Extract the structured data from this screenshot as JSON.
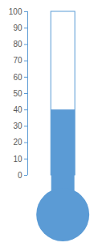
{
  "chart_data": {
    "type": "bar",
    "values": [
      40
    ],
    "color": "#5b9bd5",
    "ylim": [
      0,
      100
    ],
    "yticks": [
      0,
      10,
      20,
      30,
      40,
      50,
      60,
      70,
      80,
      90,
      100
    ]
  }
}
